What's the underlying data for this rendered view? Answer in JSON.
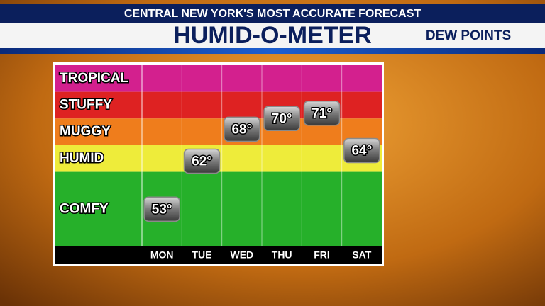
{
  "chart_data": {
    "type": "meter",
    "header": "CENTRAL NEW YORK'S MOST ACCURATE FORECAST",
    "title": "HUMID-O-METER",
    "subtitle": "DEW POINTS",
    "categories": [
      "MON",
      "TUE",
      "WED",
      "THU",
      "FRI",
      "SAT"
    ],
    "values": [
      53,
      62,
      68,
      70,
      71,
      64
    ],
    "value_labels": [
      "53°",
      "62°",
      "68°",
      "70°",
      "71°",
      "64°"
    ],
    "marker_color": "#8a8a8a",
    "ylim": [
      46,
      80
    ],
    "bands": [
      {
        "name": "TROPICAL",
        "color": "#d3208e",
        "range": [
          75,
          80
        ]
      },
      {
        "name": "STUFFY",
        "color": "#de2222",
        "range": [
          70,
          75
        ]
      },
      {
        "name": "MUGGY",
        "color": "#ef7d1c",
        "range": [
          65,
          70
        ]
      },
      {
        "name": "HUMID",
        "color": "#eeec3a",
        "range": [
          60,
          65
        ]
      },
      {
        "name": "COMFY",
        "color": "#26b02a",
        "range": [
          46,
          60
        ]
      }
    ]
  }
}
